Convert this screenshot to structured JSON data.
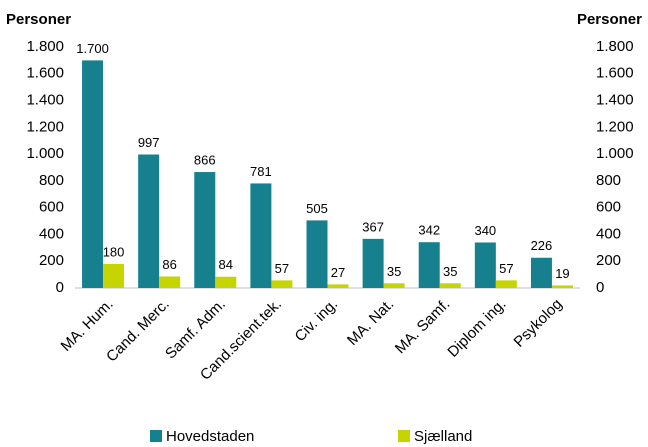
{
  "chart_data": {
    "type": "bar",
    "y_label": "Personer",
    "y2_label": "Personer",
    "categories": [
      "MA. Hum.",
      "Cand. Merc.",
      "Samf. Adm.",
      "Cand.scient.tek.",
      "Civ. ing.",
      "MA. Nat.",
      "MA. Samf.",
      "Diplom ing.",
      "Psykolog"
    ],
    "series": [
      {
        "name": "Hovedstaden",
        "color": "#16808f",
        "values": [
          1700,
          997,
          866,
          781,
          505,
          367,
          342,
          340,
          226
        ],
        "value_labels": [
          "1.700",
          "997",
          "866",
          "781",
          "505",
          "367",
          "342",
          "340",
          "226"
        ]
      },
      {
        "name": "Sjælland",
        "color": "#c6d400",
        "values": [
          180,
          86,
          84,
          57,
          27,
          35,
          35,
          57,
          19
        ]
      }
    ],
    "ylim": [
      0,
      1800
    ],
    "yticks": [
      {
        "value": 0,
        "label": "0"
      },
      {
        "value": 200,
        "label": "200"
      },
      {
        "value": 400,
        "label": "400"
      },
      {
        "value": 600,
        "label": "600"
      },
      {
        "value": 800,
        "label": "800"
      },
      {
        "value": 1000,
        "label": "1.000"
      },
      {
        "value": 1200,
        "label": "1.200"
      },
      {
        "value": 1400,
        "label": "1.400"
      },
      {
        "value": 1600,
        "label": "1.600"
      },
      {
        "value": 1800,
        "label": "1.800"
      }
    ],
    "y2lim": [
      0,
      1800
    ],
    "y2ticks": [
      {
        "value": 0,
        "label": "0"
      },
      {
        "value": 200,
        "label": "200"
      },
      {
        "value": 400,
        "label": "400"
      },
      {
        "value": 600,
        "label": "600"
      },
      {
        "value": 800,
        "label": "800"
      },
      {
        "value": 1000,
        "label": "1.000"
      },
      {
        "value": 1200,
        "label": "1.200"
      },
      {
        "value": 1400,
        "label": "1.400"
      },
      {
        "value": 1600,
        "label": "1.600"
      },
      {
        "value": 1800,
        "label": "1.800"
      }
    ],
    "grid": false,
    "legend": "bottom"
  }
}
